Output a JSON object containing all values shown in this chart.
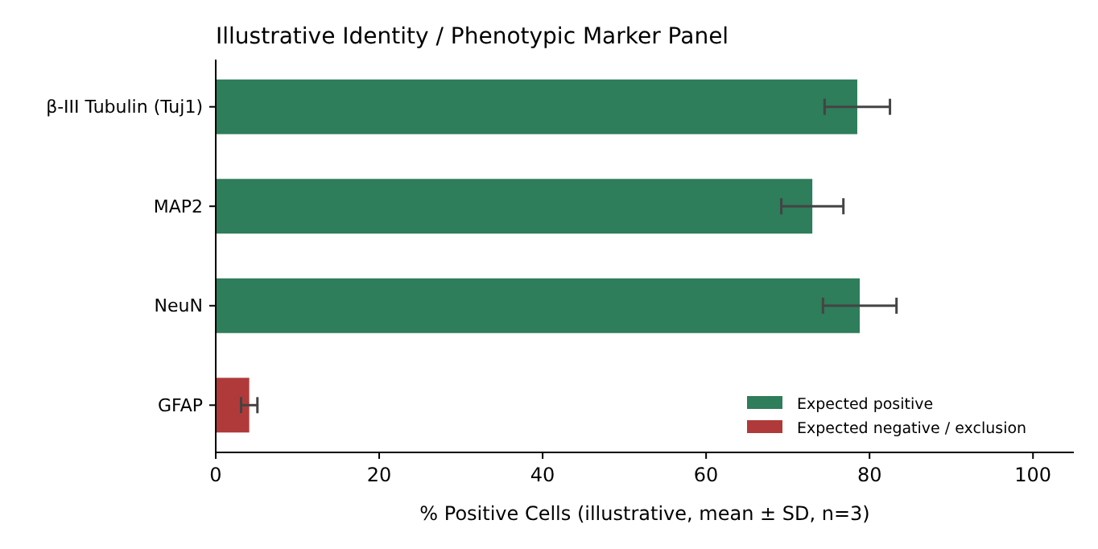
{
  "chart_data": {
    "type": "bar",
    "orientation": "horizontal",
    "title": "Illustrative Identity / Phenotypic Marker Panel",
    "xlabel": "% Positive Cells (illustrative, mean ± SD, n=3)",
    "categories": [
      "β-III Tubulin (Tuj1)",
      "MAP2",
      "NeuN",
      "GFAP"
    ],
    "series": [
      {
        "name": "Expected positive",
        "color": "#2e7d5b",
        "values": [
          78.5,
          73,
          78.8,
          null
        ],
        "errors": [
          4,
          3.8,
          4.5,
          null
        ]
      },
      {
        "name": "Expected negative / exclusion",
        "color": "#b03a3a",
        "values": [
          null,
          null,
          null,
          4.1
        ],
        "errors": [
          null,
          null,
          null,
          1
        ]
      }
    ],
    "xlim": [
      0,
      105
    ],
    "xticks": [
      0,
      20,
      40,
      60,
      80,
      100
    ],
    "grid": false,
    "legend": "bottom right"
  }
}
